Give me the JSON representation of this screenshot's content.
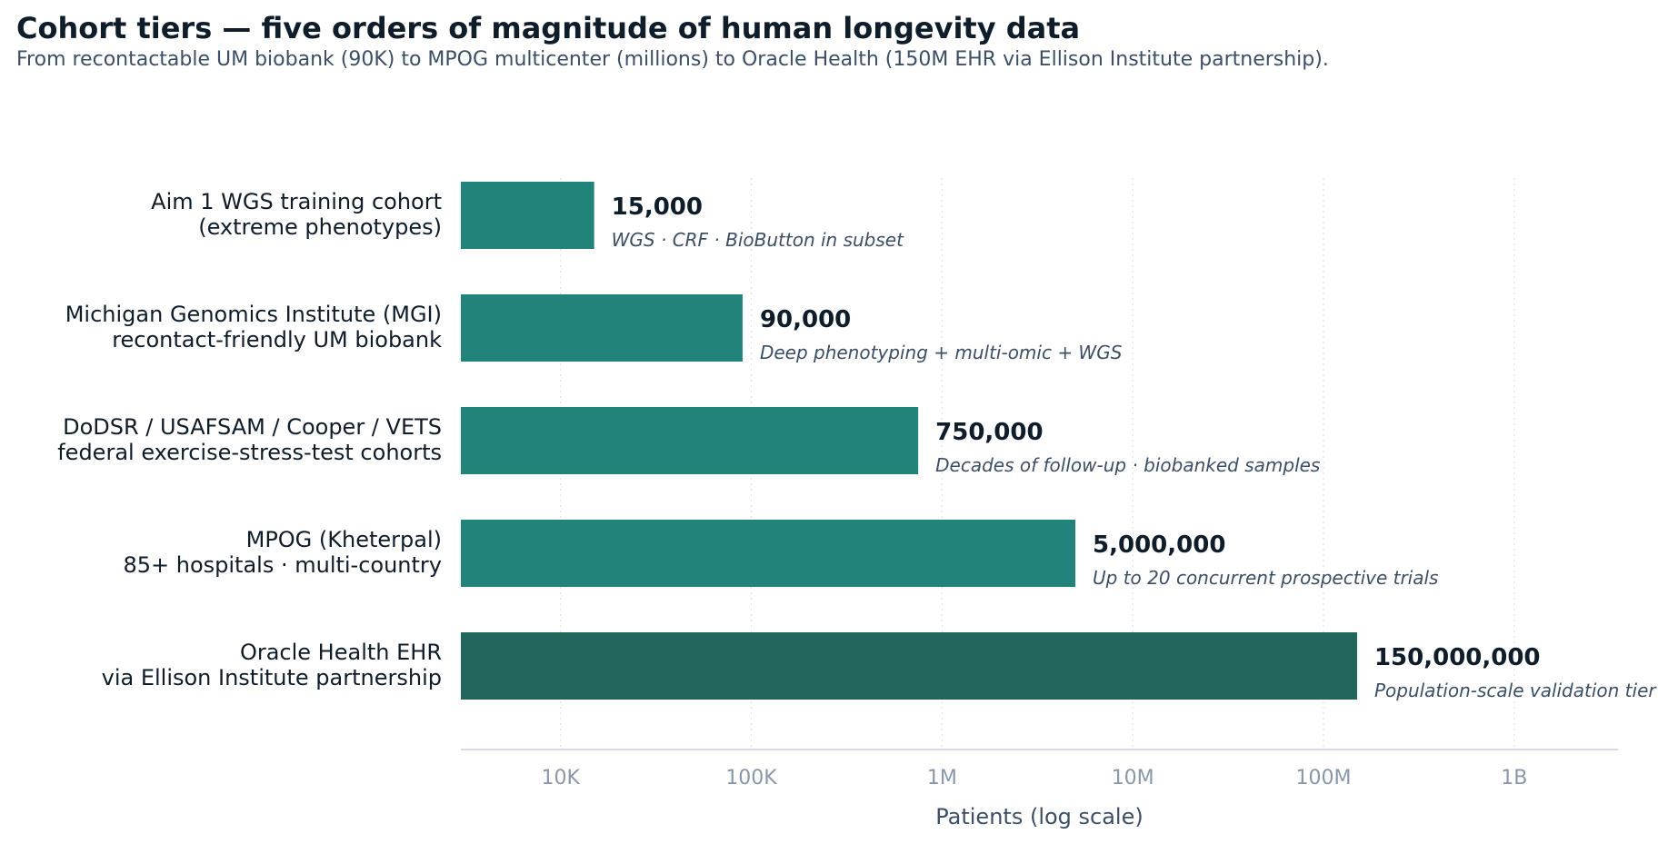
{
  "title": "Cohort tiers — five orders of magnitude of human longevity data",
  "subtitle": "From recontactable UM biobank (90K) to MPOG multicenter (millions) to Oracle Health (150M EHR via Ellison Institute partnership).",
  "chart_data": {
    "type": "bar",
    "orientation": "horizontal",
    "xscale": "log",
    "xlim": [
      3000,
      3500000000
    ],
    "xlabel": "Patients (log scale)",
    "xticks": [
      10000,
      100000,
      1000000,
      10000000,
      100000000,
      1000000000
    ],
    "xtick_labels": [
      "10K",
      "100K",
      "1M",
      "10M",
      "100M",
      "1B"
    ],
    "grid": "vertical dotted",
    "categories": [
      [
        "Aim 1 WGS training cohort",
        "(extreme phenotypes)"
      ],
      [
        "Michigan Genomics Institute (MGI)",
        "recontact-friendly UM biobank"
      ],
      [
        "DoDSR / USAFSAM / Cooper / VETS",
        "federal exercise-stress-test cohorts"
      ],
      [
        "MPOG (Kheterpal)",
        "85+ hospitals · multi-country"
      ],
      [
        "Oracle Health EHR",
        "via Ellison Institute partnership"
      ]
    ],
    "values": [
      15000,
      90000,
      750000,
      5000000,
      150000000
    ],
    "value_labels": [
      "15,000",
      "90,000",
      "750,000",
      "5,000,000",
      "150,000,000"
    ],
    "annotations": [
      "WGS · CRF · BioButton in subset",
      "Deep phenotyping + multi-omic + WGS",
      "Decades of follow-up · biobanked samples",
      "Up to 20 concurrent prospective trials",
      "Population-scale validation tier"
    ],
    "bar_colors": [
      "#22837a",
      "#22837a",
      "#22837a",
      "#22837a",
      "#21655d"
    ]
  },
  "colors": {
    "title": "#0f1c2a",
    "muted": "#3d4f66",
    "tick": "#8a97aa",
    "axis": "#c5cfda",
    "grid": "#dde5ee"
  }
}
